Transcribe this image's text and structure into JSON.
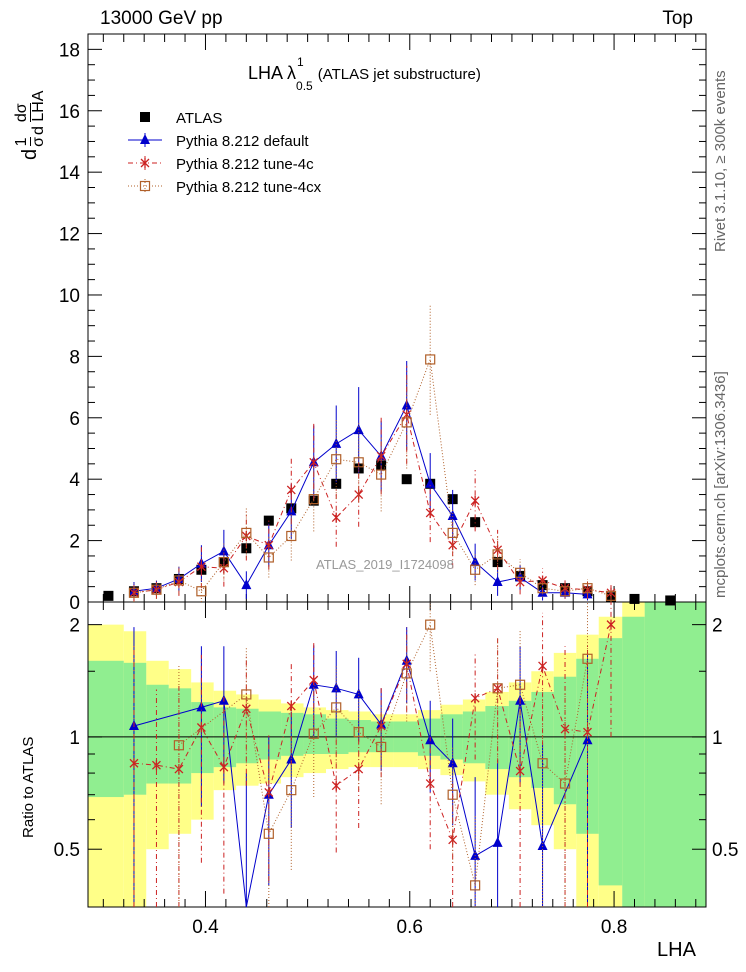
{
  "header": {
    "left": "13000 GeV pp",
    "right": "Top"
  },
  "side_labels": {
    "rivet": "Rivet 3.1.10, ≥ 300k events",
    "mcplots": "mcplots.cern.ch [arXiv:1306.3436]"
  },
  "plot_title": {
    "main": "LHA λ",
    "sup": "1",
    "sub": "0.5",
    "tail": "(ATLAS jet substructure)"
  },
  "watermark": "ATLAS_2019_I1724098",
  "ylabel_main": {
    "prefix": "d",
    "frac1": "1",
    "frac1_den": "σ",
    "frac2_num": "dσ",
    "frac2_den": "d LHA"
  },
  "ylabel_ratio": "Ratio to ATLAS",
  "xlabel": "LHA",
  "colors": {
    "data": "#000000",
    "default": "#0000cc",
    "tune4c": "#cc2222",
    "tune4cx": "#b0602a",
    "band_green": "#90ee90",
    "band_yellow": "#ffff88"
  },
  "chart_data": [
    {
      "type": "scatter",
      "name": "main",
      "xlim": [
        0.285,
        0.89
      ],
      "ylim": [
        0,
        18.5
      ],
      "yticks": [
        0,
        2,
        4,
        6,
        8,
        10,
        12,
        14,
        16,
        18
      ],
      "ytick_labels": [
        "0",
        "2",
        "4",
        "6",
        "8",
        "10",
        "12",
        "14",
        "16",
        "18"
      ],
      "series": [
        {
          "name": "ATLAS",
          "style": "data",
          "x": [
            0.305,
            0.33,
            0.352,
            0.374,
            0.396,
            0.418,
            0.44,
            0.462,
            0.484,
            0.506,
            0.528,
            0.55,
            0.572,
            0.597,
            0.62,
            0.642,
            0.664,
            0.686,
            0.708,
            0.73,
            0.752,
            0.774,
            0.797,
            0.82,
            0.855
          ],
          "y": [
            0.2,
            0.35,
            0.45,
            0.75,
            1.05,
            1.3,
            1.75,
            2.65,
            3.05,
            3.3,
            3.85,
            4.35,
            4.45,
            4.0,
            3.85,
            3.35,
            2.6,
            1.3,
            0.85,
            0.55,
            0.45,
            0.35,
            0.15,
            0.1,
            0.05
          ]
        },
        {
          "name": "Pythia 8.212 default",
          "style": "default",
          "x": [
            0.33,
            0.352,
            0.374,
            0.396,
            0.418,
            0.44,
            0.462,
            0.484,
            0.506,
            0.528,
            0.55,
            0.572,
            0.597,
            0.62,
            0.642,
            0.664,
            0.686,
            0.708,
            0.73,
            0.752,
            0.774
          ],
          "y": [
            0.35,
            0.45,
            0.75,
            1.25,
            1.65,
            0.55,
            1.85,
            2.95,
            4.55,
            5.15,
            5.6,
            4.75,
            6.4,
            3.85,
            2.8,
            1.3,
            0.65,
            0.8,
            0.3,
            0.3,
            0.25
          ],
          "err": [
            0.3,
            0.25,
            0.4,
            0.6,
            0.7,
            0.45,
            0.7,
            0.9,
            1.2,
            1.25,
            1.4,
            1.15,
            1.45,
            1.0,
            0.85,
            0.6,
            0.45,
            0.4,
            0.25,
            0.2,
            0.2
          ]
        },
        {
          "name": "Pythia 8.212 tune-4c",
          "style": "tune4c",
          "x": [
            0.33,
            0.352,
            0.374,
            0.396,
            0.418,
            0.44,
            0.462,
            0.484,
            0.506,
            0.528,
            0.55,
            0.572,
            0.597,
            0.62,
            0.642,
            0.664,
            0.686,
            0.708,
            0.73,
            0.752,
            0.774,
            0.797
          ],
          "y": [
            0.3,
            0.4,
            0.65,
            1.15,
            1.1,
            2.15,
            1.85,
            3.65,
            4.55,
            2.75,
            3.5,
            4.75,
            6.1,
            2.9,
            1.85,
            3.3,
            1.7,
            0.65,
            0.7,
            0.45,
            0.4,
            0.3
          ],
          "err": [
            0.35,
            0.3,
            0.45,
            0.7,
            0.6,
            0.8,
            0.8,
            1.1,
            1.25,
            0.95,
            1.05,
            1.25,
            1.6,
            0.95,
            0.75,
            1.0,
            0.65,
            0.4,
            0.4,
            0.3,
            0.3,
            0.25
          ]
        },
        {
          "name": "Pythia 8.212 tune-4cx",
          "style": "tune4cx",
          "x": [
            0.33,
            0.352,
            0.374,
            0.396,
            0.418,
            0.44,
            0.462,
            0.484,
            0.506,
            0.528,
            0.55,
            0.572,
            0.597,
            0.62,
            0.642,
            0.664,
            0.686,
            0.708,
            0.73,
            0.752,
            0.774,
            0.797
          ],
          "y": [
            0.3,
            0.4,
            0.7,
            0.35,
            1.3,
            2.25,
            1.45,
            2.15,
            3.35,
            4.65,
            4.55,
            4.15,
            5.85,
            7.9,
            2.25,
            1.05,
            1.55,
            0.95,
            0.45,
            0.35,
            0.45,
            0.2
          ],
          "err": [
            0.3,
            0.3,
            0.45,
            0.35,
            0.6,
            0.8,
            0.65,
            0.8,
            1.05,
            1.3,
            1.3,
            1.2,
            1.5,
            1.8,
            0.75,
            0.5,
            0.6,
            0.45,
            0.3,
            0.25,
            0.3,
            0.2
          ]
        }
      ],
      "legend": [
        "ATLAS",
        "Pythia 8.212 default",
        "Pythia 8.212 tune-4c",
        "Pythia 8.212 tune-4cx"
      ]
    },
    {
      "type": "scatter",
      "name": "ratio",
      "xlim": [
        0.285,
        0.89
      ],
      "ylim": [
        0.35,
        2.3
      ],
      "yticks": [
        0.5,
        1,
        2
      ],
      "ytick_labels": [
        "0.5",
        "1",
        "2"
      ],
      "xticks": [
        0.4,
        0.6,
        0.8
      ],
      "xtick_labels": [
        "0.4",
        "0.6",
        "0.8"
      ],
      "bands": {
        "edges": [
          0.285,
          0.32,
          0.342,
          0.364,
          0.386,
          0.408,
          0.43,
          0.452,
          0.474,
          0.496,
          0.518,
          0.54,
          0.562,
          0.584,
          0.608,
          0.63,
          0.652,
          0.674,
          0.697,
          0.719,
          0.741,
          0.763,
          0.785,
          0.808,
          0.83,
          0.89
        ],
        "green_lo": [
          0.69,
          0.7,
          0.75,
          0.75,
          0.8,
          0.83,
          0.85,
          0.87,
          0.89,
          0.9,
          0.9,
          0.91,
          0.91,
          0.91,
          0.89,
          0.87,
          0.85,
          0.82,
          0.78,
          0.73,
          0.66,
          0.55,
          0.4,
          0.35,
          0.35
        ],
        "green_hi": [
          1.6,
          1.58,
          1.38,
          1.35,
          1.24,
          1.2,
          1.19,
          1.17,
          1.16,
          1.15,
          1.12,
          1.11,
          1.1,
          1.1,
          1.12,
          1.15,
          1.17,
          1.21,
          1.25,
          1.32,
          1.45,
          1.62,
          1.84,
          2.1,
          2.3
        ],
        "yellow_lo": [
          0.35,
          0.35,
          0.5,
          0.55,
          0.6,
          0.72,
          0.74,
          0.75,
          0.78,
          0.8,
          0.82,
          0.83,
          0.83,
          0.83,
          0.82,
          0.79,
          0.76,
          0.7,
          0.64,
          0.58,
          0.5,
          0.35,
          0.35,
          0.35,
          0.35
        ],
        "yellow_hi": [
          2.0,
          1.92,
          1.6,
          1.52,
          1.4,
          1.33,
          1.3,
          1.26,
          1.23,
          1.2,
          1.18,
          1.17,
          1.15,
          1.15,
          1.18,
          1.22,
          1.26,
          1.32,
          1.4,
          1.5,
          1.68,
          1.88,
          2.1,
          2.3,
          2.3
        ]
      },
      "series": [
        {
          "name": "Pythia 8.212 default",
          "style": "default",
          "x": [
            0.33,
            0.396,
            0.418,
            0.44,
            0.462,
            0.484,
            0.506,
            0.528,
            0.55,
            0.572,
            0.597,
            0.62,
            0.642,
            0.664,
            0.686,
            0.708,
            0.73,
            0.774
          ],
          "y": [
            1.07,
            1.2,
            1.25,
            0.3,
            0.7,
            0.87,
            1.38,
            1.35,
            1.3,
            1.08,
            1.6,
            0.98,
            0.85,
            0.48,
            0.52,
            1.25,
            0.51,
            0.98
          ],
          "err": [
            0.9,
            0.55,
            0.5,
            0.5,
            0.3,
            0.3,
            0.38,
            0.35,
            0.33,
            0.27,
            0.37,
            0.27,
            0.27,
            0.3,
            0.35,
            0.5,
            0.45,
            0.7
          ]
        },
        {
          "name": "Pythia 8.212 tune-4c",
          "style": "tune4c",
          "x": [
            0.33,
            0.352,
            0.374,
            0.396,
            0.418,
            0.44,
            0.462,
            0.484,
            0.506,
            0.528,
            0.55,
            0.572,
            0.597,
            0.62,
            0.642,
            0.664,
            0.686,
            0.708,
            0.73,
            0.752,
            0.774,
            0.797
          ],
          "y": [
            0.85,
            0.84,
            0.82,
            1.06,
            0.83,
            1.19,
            0.71,
            1.21,
            1.42,
            0.74,
            0.82,
            1.07,
            1.57,
            0.75,
            0.53,
            1.27,
            1.35,
            0.81,
            1.55,
            1.05,
            1.03,
            2.0
          ],
          "err": [
            0.9,
            0.5,
            0.55,
            0.6,
            0.45,
            0.45,
            0.3,
            0.37,
            0.39,
            0.25,
            0.25,
            0.29,
            0.4,
            0.25,
            0.22,
            0.4,
            0.5,
            0.48,
            0.6,
            0.7,
            0.75,
            1.0
          ]
        },
        {
          "name": "Pythia 8.212 tune-4cx",
          "style": "tune4cx",
          "x": [
            0.374,
            0.44,
            0.462,
            0.484,
            0.506,
            0.528,
            0.55,
            0.572,
            0.597,
            0.62,
            0.642,
            0.664,
            0.686,
            0.708,
            0.73,
            0.752,
            0.774
          ],
          "y": [
            0.95,
            1.3,
            0.55,
            0.72,
            1.02,
            1.2,
            1.03,
            0.94,
            1.48,
            2.0,
            0.7,
            0.4,
            1.35,
            1.38,
            0.85,
            0.75,
            1.62
          ],
          "err": [
            0.6,
            0.45,
            0.25,
            0.28,
            0.33,
            0.35,
            0.31,
            0.28,
            0.38,
            0.5,
            0.24,
            0.22,
            0.5,
            0.55,
            0.5,
            0.6,
            0.8
          ]
        }
      ]
    }
  ]
}
